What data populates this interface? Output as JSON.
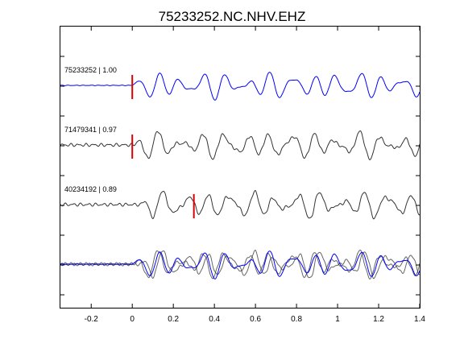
{
  "chart_data": {
    "type": "line",
    "title": "75233252.NC.NHV.EHZ",
    "xlabel": "",
    "ylabel": "",
    "xlim": [
      -0.35,
      1.4
    ],
    "x_ticks": [
      -0.2,
      0,
      0.2,
      0.4,
      0.6,
      0.8,
      1,
      1.2,
      1.4
    ],
    "x_tick_labels": [
      "-0.2",
      "0",
      "0.2",
      "0.4",
      "0.6",
      "0.8",
      "1",
      "1.2",
      "1.4"
    ],
    "grid": false,
    "legend": "none",
    "colors": {
      "primary": "#0000ff",
      "other": "#333333",
      "pick": "#dd0000",
      "axis": "#000000"
    },
    "traces": [
      {
        "label": "75233252 | 1.00",
        "event": "75233252",
        "correlation": 1.0,
        "color": "#0000ff",
        "pick_time": 0.0,
        "shift": 0.0,
        "seed": 1.3
      },
      {
        "label": "71479341 | 0.97",
        "event": "71479341",
        "correlation": 0.97,
        "color": "#333333",
        "pick_time": 0.0,
        "shift": 0.004,
        "seed": 2.7
      },
      {
        "label": "40234192 | 0.89",
        "event": "40234192",
        "correlation": 0.89,
        "color": "#333333",
        "pick_time": 0.3,
        "shift": 0.0,
        "seed": 4.1
      }
    ],
    "overlay": {
      "label": "",
      "description": "all traces superimposed"
    }
  }
}
